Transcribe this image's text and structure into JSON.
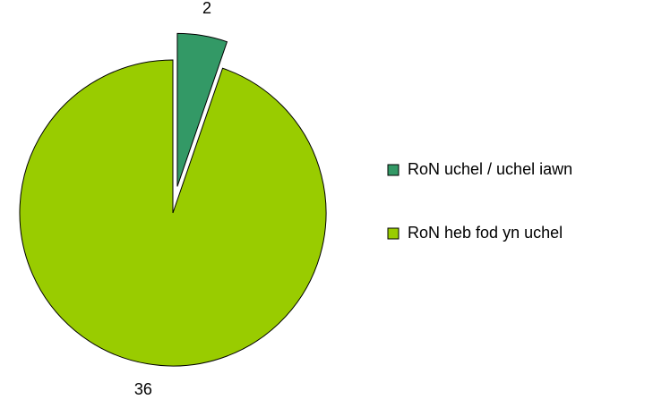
{
  "chart_data": {
    "type": "pie",
    "categories": [
      "RoN uchel / uchel iawn",
      "RoN heb fod yn uchel"
    ],
    "values": [
      2,
      36
    ],
    "colors": [
      "#339966",
      "#99cc00"
    ],
    "legend": "right"
  }
}
